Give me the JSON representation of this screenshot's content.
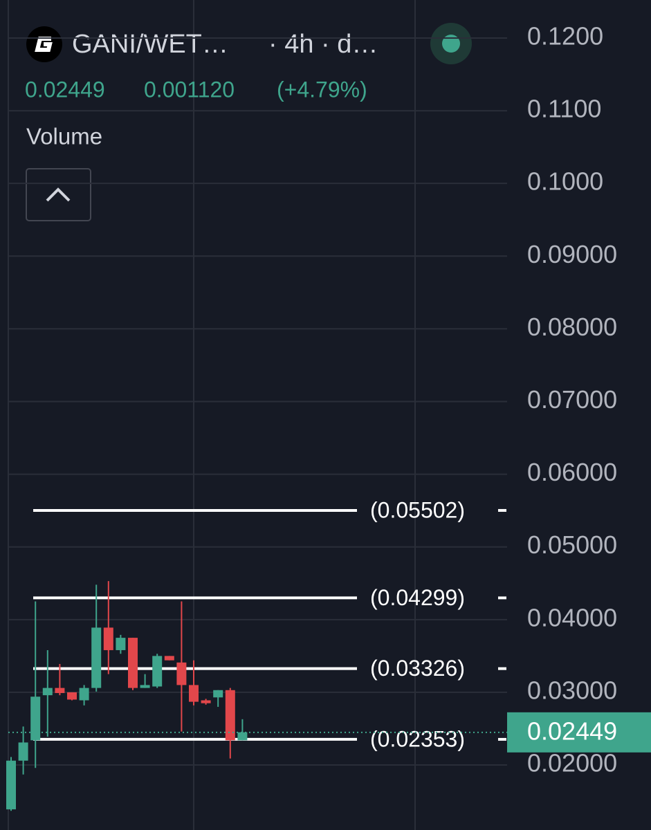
{
  "header": {
    "symbol": "GANI/WET…",
    "interval": "· 4h · d…",
    "change": "0.001120",
    "change_pct": "(+4.79%)",
    "indicator": "Volume"
  },
  "chart_data": {
    "type": "candlestick",
    "categories": [
      null,
      null,
      null,
      null,
      null,
      null,
      null,
      null,
      null,
      null,
      null,
      null,
      null,
      null,
      null,
      null,
      null,
      null,
      null,
      null
    ],
    "open": [
      0.0139,
      0.0206,
      0.0234,
      0.0296,
      0.0306,
      0.03,
      0.0289,
      0.0306,
      0.0389,
      0.0358,
      0.0375,
      0.0306,
      0.0308,
      0.035,
      0.0341,
      0.031,
      0.0289,
      0.0293,
      0.0303,
      0.0234
    ],
    "high": [
      0.0211,
      0.0253,
      0.0425,
      0.0358,
      0.0339,
      0.03,
      0.031,
      0.0448,
      0.0453,
      0.0379,
      0.0375,
      0.0325,
      0.0353,
      0.035,
      0.0425,
      0.0344,
      0.0291,
      0.0303,
      0.0306,
      0.0263
    ],
    "low": [
      0.0137,
      0.0187,
      0.0196,
      0.0239,
      0.0296,
      0.0289,
      0.0282,
      0.0301,
      0.0325,
      0.0353,
      0.0303,
      0.0306,
      0.0306,
      0.0344,
      0.0246,
      0.0282,
      0.0283,
      0.028,
      0.0209,
      0.0234
    ],
    "close": [
      0.0206,
      0.0231,
      0.0294,
      0.0306,
      0.0299,
      0.029,
      0.0306,
      0.0389,
      0.0358,
      0.0375,
      0.0306,
      0.031,
      0.035,
      0.0344,
      0.031,
      0.0287,
      0.0285,
      0.0303,
      0.0234,
      0.0245
    ],
    "up_color": "#3fa58c",
    "down_color": "#e2474b",
    "current_price": 0.02449,
    "ylim": [
      0.01106,
      0.12523
    ],
    "yticks": [
      {
        "value": 0.12,
        "label": "0.1200"
      },
      {
        "value": 0.11,
        "label": "0.1100"
      },
      {
        "value": 0.1,
        "label": "0.1000"
      },
      {
        "value": 0.09,
        "label": "0.09000"
      },
      {
        "value": 0.08,
        "label": "0.08000"
      },
      {
        "value": 0.07,
        "label": "0.07000"
      },
      {
        "value": 0.06,
        "label": "0.06000"
      },
      {
        "value": 0.05,
        "label": "0.05000"
      },
      {
        "value": 0.04,
        "label": "0.04000"
      },
      {
        "value": 0.03,
        "label": "0.03000"
      },
      {
        "value": 0.02,
        "label": "0.02000"
      }
    ],
    "levels": [
      {
        "value": 0.05502,
        "label": "(0.05502)"
      },
      {
        "value": 0.04299,
        "label": "(0.04299)"
      },
      {
        "value": 0.03326,
        "label": "(0.03326)"
      },
      {
        "value": 0.02353,
        "label": "(0.02353)"
      }
    ],
    "grid": true
  }
}
